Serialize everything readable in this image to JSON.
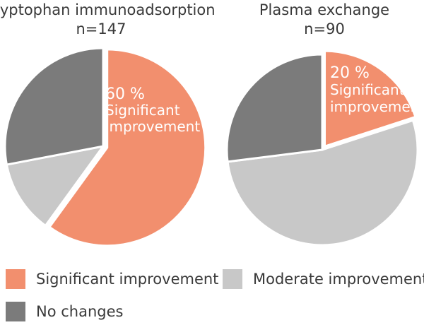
{
  "chart_data": [
    {
      "type": "pie",
      "title": "Tryptophan immunoadsorption",
      "subtitle": "n=147",
      "slices": [
        {
          "name": "Significant improvement",
          "value": 60
        },
        {
          "name": "Moderate improvement",
          "value": 12
        },
        {
          "name": "No changes",
          "value": 28
        }
      ],
      "annotation": {
        "pct": "60 %",
        "line1": "Significant",
        "line2": "improvement"
      }
    },
    {
      "type": "pie",
      "title": "Plasma exchange",
      "subtitle": "n=90",
      "slices": [
        {
          "name": "Significant improvement",
          "value": 20
        },
        {
          "name": "Moderate improvement",
          "value": 53
        },
        {
          "name": "No changes",
          "value": 27
        }
      ],
      "annotation": {
        "pct": "20 %",
        "line1": "Significant",
        "line2": "improvement"
      }
    }
  ],
  "legend": [
    {
      "label": "Significant improvement",
      "color": "#f28f6e"
    },
    {
      "label": "Moderate improvement",
      "color": "#c8c8c8"
    },
    {
      "label": "No changes",
      "color": "#7b7b7b"
    }
  ],
  "colors": {
    "Significant improvement": "#f28f6e",
    "Moderate improvement": "#c8c8c8",
    "No changes": "#7b7b7b"
  }
}
